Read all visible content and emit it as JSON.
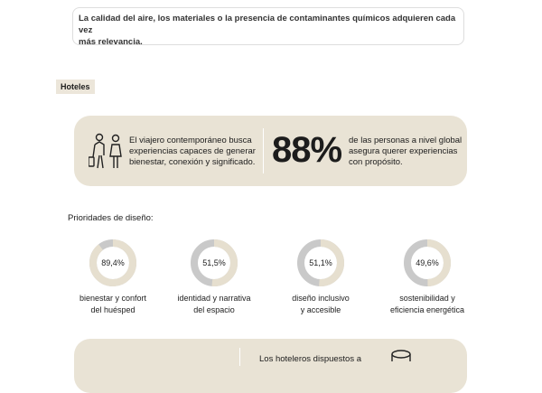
{
  "intro": {
    "lines": [
      "La calidad del aire, los materiales o la presencia de contaminantes químicos adquieren cada vez",
      "más relevancia."
    ]
  },
  "section_tag": "Hoteles",
  "highlight": {
    "text_lines": [
      "El viajero contemporáneo busca",
      "experiencias capaces de generar",
      "bienestar, conexión y significado."
    ],
    "stat": {
      "value": 88,
      "label": "88%"
    },
    "stat_lines": [
      "de las personas a nivel global",
      "asegura querer experiencias",
      "con propósito."
    ]
  },
  "priorities": {
    "title": "Prioridades de diseño:",
    "items": [
      {
        "value": 89.4,
        "label": "89,4%",
        "lines": [
          "bienestar y confort",
          "del huésped"
        ]
      },
      {
        "value": 51.5,
        "label": "51,5%",
        "lines": [
          "identidad y narrativa",
          "del espacio"
        ]
      },
      {
        "value": 51.1,
        "label": "51,1%",
        "lines": [
          "diseño inclusivo",
          "y accesible"
        ]
      },
      {
        "value": 49.6,
        "label": "49,6%",
        "lines": [
          "sostenibilidad y",
          "eficiencia energética"
        ]
      }
    ],
    "max": 100
  },
  "bottom": {
    "text": "Los hoteleros dispuestos a"
  }
}
